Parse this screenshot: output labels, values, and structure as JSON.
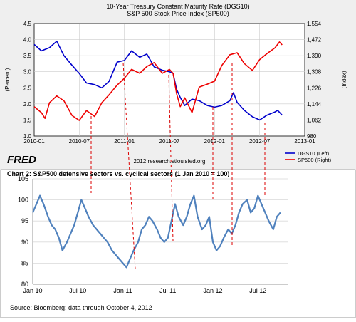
{
  "chart_data": [
    {
      "type": "line",
      "title": "10-Year Treasury Constant Maturity Rate (DGS10)",
      "subtitle": "S&P 500 Stock Price Index (SP500)",
      "ylabel_left": "(Percent)",
      "ylabel_right": "(Index)",
      "x_ticks": [
        "2010-01",
        "2010-07",
        "2011-01",
        "2011-07",
        "2012-01",
        "2012-07",
        "2013-01"
      ],
      "x_range": [
        2010.0,
        2013.0
      ],
      "ylim_left": [
        1.0,
        4.5
      ],
      "y_ticks_left": [
        "1.0",
        "1.5",
        "2.0",
        "2.5",
        "3.0",
        "3.5",
        "4.0",
        "4.5"
      ],
      "ylim_right": [
        980,
        1554
      ],
      "y_ticks_right": [
        "980",
        "1,062",
        "1,144",
        "1,226",
        "1,308",
        "1,390",
        "1,472",
        "1,554"
      ],
      "grid": true,
      "legend_position": "bottom-right",
      "source_note": "2012 research.stlouisfed.org",
      "brand": "FRED",
      "series": [
        {
          "name": "DGS10 (Left)",
          "color": "#0000cc",
          "axis": "left",
          "x": [
            2010.0,
            2010.08,
            2010.17,
            2010.25,
            2010.33,
            2010.42,
            2010.5,
            2010.58,
            2010.67,
            2010.75,
            2010.83,
            2010.92,
            2011.0,
            2011.08,
            2011.17,
            2011.25,
            2011.33,
            2011.42,
            2011.5,
            2011.54,
            2011.58,
            2011.62,
            2011.67,
            2011.75,
            2011.83,
            2011.92,
            2012.0,
            2012.08,
            2012.17,
            2012.21,
            2012.25,
            2012.33,
            2012.42,
            2012.5,
            2012.58,
            2012.67,
            2012.7,
            2012.75
          ],
          "values": [
            3.85,
            3.65,
            3.75,
            3.95,
            3.5,
            3.2,
            2.95,
            2.65,
            2.6,
            2.5,
            2.7,
            3.3,
            3.35,
            3.65,
            3.45,
            3.55,
            3.15,
            3.05,
            3.0,
            2.95,
            2.45,
            2.2,
            1.95,
            2.15,
            2.1,
            1.95,
            1.9,
            1.95,
            2.1,
            2.35,
            2.05,
            1.8,
            1.6,
            1.5,
            1.65,
            1.75,
            1.8,
            1.65
          ]
        },
        {
          "name": "SP500 (Right)",
          "color": "#ee0000",
          "axis": "right",
          "x": [
            2010.0,
            2010.08,
            2010.12,
            2010.17,
            2010.25,
            2010.33,
            2010.42,
            2010.5,
            2010.58,
            2010.67,
            2010.75,
            2010.83,
            2010.92,
            2011.0,
            2011.08,
            2011.17,
            2011.25,
            2011.33,
            2011.42,
            2011.5,
            2011.54,
            2011.58,
            2011.62,
            2011.67,
            2011.75,
            2011.83,
            2011.92,
            2012.0,
            2012.08,
            2012.17,
            2012.25,
            2012.33,
            2012.42,
            2012.5,
            2012.58,
            2012.67,
            2012.72,
            2012.75
          ],
          "values": [
            1130,
            1100,
            1070,
            1150,
            1185,
            1160,
            1085,
            1060,
            1110,
            1080,
            1150,
            1190,
            1240,
            1275,
            1320,
            1300,
            1335,
            1355,
            1300,
            1320,
            1300,
            1195,
            1130,
            1175,
            1100,
            1230,
            1245,
            1260,
            1340,
            1395,
            1405,
            1350,
            1315,
            1370,
            1400,
            1430,
            1460,
            1445
          ]
        }
      ]
    },
    {
      "type": "line",
      "title": "Chart 2: S&P500 defensive sectors vs. cyclical sectors (1 Jan 2010 = 100)",
      "x_ticks": [
        "Jan 10",
        "Jul 10",
        "Jan 11",
        "Jul 11",
        "Jan 12",
        "Jul 12"
      ],
      "x_range": [
        2010.0,
        2012.83
      ],
      "ylim": [
        80,
        105
      ],
      "y_ticks": [
        "80",
        "85",
        "90",
        "95",
        "100",
        "105"
      ],
      "grid": true,
      "source_note": "Source: Bloomberg; data through October 4, 2012",
      "series": [
        {
          "color": "#4f81bd",
          "x": [
            2010.0,
            2010.04,
            2010.08,
            2010.12,
            2010.17,
            2010.21,
            2010.25,
            2010.29,
            2010.33,
            2010.38,
            2010.42,
            2010.46,
            2010.5,
            2010.54,
            2010.58,
            2010.62,
            2010.67,
            2010.71,
            2010.75,
            2010.79,
            2010.83,
            2010.88,
            2010.92,
            2010.96,
            2011.0,
            2011.04,
            2011.08,
            2011.12,
            2011.17,
            2011.21,
            2011.25,
            2011.29,
            2011.33,
            2011.38,
            2011.42,
            2011.46,
            2011.5,
            2011.54,
            2011.58,
            2011.62,
            2011.67,
            2011.71,
            2011.75,
            2011.79,
            2011.83,
            2011.88,
            2011.92,
            2011.96,
            2012.0,
            2012.04,
            2012.08,
            2012.12,
            2012.17,
            2012.21,
            2012.25,
            2012.29,
            2012.33,
            2012.38,
            2012.42,
            2012.46,
            2012.5,
            2012.54,
            2012.58,
            2012.62,
            2012.67,
            2012.71,
            2012.75
          ],
          "values": [
            97,
            99,
            101,
            99,
            96,
            94,
            93,
            91,
            88,
            90,
            92,
            94,
            97,
            100,
            98,
            96,
            94,
            93,
            92,
            91,
            90,
            88,
            87,
            86,
            85,
            84,
            86,
            88,
            90,
            93,
            94,
            96,
            95,
            93,
            91,
            90,
            91,
            95,
            99,
            96,
            94,
            96,
            99,
            101,
            96,
            93,
            94,
            96,
            90,
            88,
            89,
            91,
            93,
            92,
            94,
            97,
            99,
            100,
            97,
            98,
            101,
            99,
            97,
            95,
            93,
            96,
            97
          ]
        }
      ]
    }
  ]
}
